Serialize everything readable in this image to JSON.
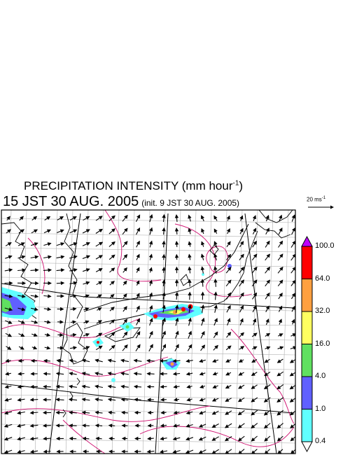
{
  "title": "PRECIPITATION INTENSITY (mm hour",
  "title_exp": "-1",
  "title_close": ")",
  "subtitle": "15 JST 30 AUG. 2005",
  "init_label": "(init. 9 JST 30 AUG. 2005)",
  "wind_scale": {
    "label": "20 ms",
    "exp": "-1"
  },
  "colorbar": {
    "labels": [
      "100.0",
      "64.0",
      "32.0",
      "16.0",
      "4.0",
      "1.0",
      "0.4"
    ],
    "colors": [
      "#ff0000",
      "#ffa040",
      "#ffff60",
      "#60e060",
      "#6060ff",
      "#60ffff"
    ],
    "over_color": "#c000ff",
    "under_color": "#ffffff"
  },
  "colors": {
    "coast": "#000000",
    "grid": "#b0b0b0",
    "isobar": "#d01070",
    "arrow": "#000000"
  }
}
